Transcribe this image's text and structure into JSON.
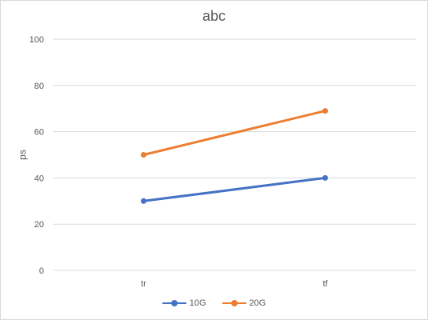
{
  "chart_data": {
    "type": "line",
    "title": "abc",
    "xlabel": "",
    "ylabel": "ps",
    "categories": [
      "tr",
      "tf"
    ],
    "ylim": [
      0,
      100
    ],
    "yticks": [
      0,
      20,
      40,
      60,
      80,
      100
    ],
    "grid": true,
    "legend_position": "bottom",
    "series": [
      {
        "name": "10G",
        "color": "#4472c4",
        "values": [
          30,
          40
        ]
      },
      {
        "name": "20G",
        "color": "#ed7d31",
        "values": [
          50,
          69
        ]
      }
    ]
  }
}
